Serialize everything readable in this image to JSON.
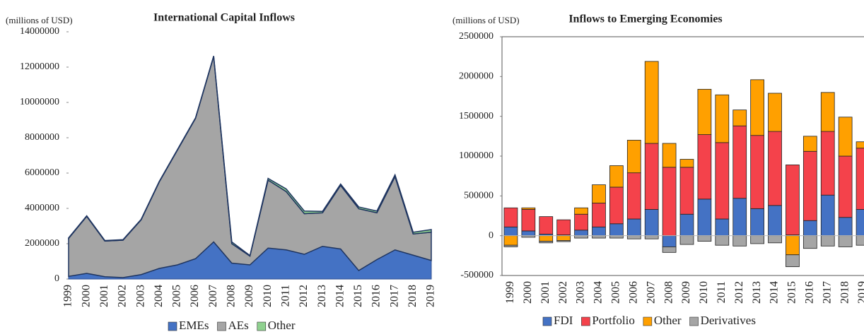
{
  "chart_data": [
    {
      "type": "area",
      "title": "International Capital Inflows",
      "ylabel": "(millions of USD)",
      "categories": [
        "1999",
        "2000",
        "2001",
        "2002",
        "2003",
        "2004",
        "2005",
        "2006",
        "2007",
        "2008",
        "2009",
        "2010",
        "2011",
        "2012",
        "2013",
        "2014",
        "2015",
        "2016",
        "2017",
        "2018",
        "2019"
      ],
      "series": [
        {
          "name": "EMEs",
          "color": "#4472c4",
          "values": [
            150000,
            320000,
            130000,
            80000,
            250000,
            600000,
            800000,
            1150000,
            2100000,
            900000,
            800000,
            1750000,
            1650000,
            1400000,
            1850000,
            1700000,
            480000,
            1100000,
            1650000,
            1350000,
            1050000
          ]
        },
        {
          "name": "AEs",
          "color": "#a5a5a5",
          "values": [
            2150000,
            3230000,
            2020000,
            2120000,
            3100000,
            4900000,
            6500000,
            7950000,
            10500000,
            1100000,
            500000,
            3850000,
            3300000,
            2300000,
            1900000,
            3600000,
            3500000,
            2650000,
            4150000,
            1200000,
            1600000
          ]
        },
        {
          "name": "Other",
          "color": "#8fd18f",
          "values": [
            30000,
            30000,
            30000,
            30000,
            30000,
            30000,
            30000,
            30000,
            30000,
            100000,
            30000,
            100000,
            150000,
            150000,
            80000,
            80000,
            100000,
            100000,
            100000,
            100000,
            150000
          ]
        }
      ],
      "ylim": [
        0,
        14000000
      ],
      "yticks": [
        0,
        2000000,
        4000000,
        6000000,
        8000000,
        10000000,
        12000000,
        14000000
      ]
    },
    {
      "type": "bar",
      "title": "Inflows to Emerging Economies",
      "ylabel": "(millions of USD)",
      "categories": [
        "1999",
        "2000",
        "2001",
        "2002",
        "2003",
        "2004",
        "2005",
        "2006",
        "2007",
        "2008",
        "2009",
        "2010",
        "2011",
        "2012",
        "2013",
        "2014",
        "2015",
        "2016",
        "2017",
        "2018",
        "2019"
      ],
      "series": [
        {
          "name": "FDI",
          "color": "#4472c4",
          "values": [
            110000,
            60000,
            20000,
            10000,
            70000,
            110000,
            150000,
            210000,
            330000,
            -140000,
            270000,
            460000,
            210000,
            470000,
            340000,
            380000,
            10000,
            190000,
            510000,
            230000,
            330000
          ]
        },
        {
          "name": "Portfolio",
          "color": "#f4424b",
          "values": [
            240000,
            270000,
            220000,
            190000,
            200000,
            300000,
            460000,
            580000,
            830000,
            860000,
            590000,
            810000,
            960000,
            910000,
            920000,
            930000,
            880000,
            870000,
            800000,
            770000,
            770000
          ]
        },
        {
          "name": "Other",
          "color": "#ffa000",
          "values": [
            -120000,
            20000,
            -70000,
            -60000,
            80000,
            230000,
            270000,
            410000,
            1030000,
            300000,
            100000,
            570000,
            600000,
            200000,
            700000,
            480000,
            -240000,
            190000,
            490000,
            490000,
            80000
          ]
        },
        {
          "name": "Derivatives",
          "color": "#a5a5a5",
          "values": [
            -20000,
            -20000,
            -20000,
            -15000,
            -30000,
            -30000,
            -30000,
            -40000,
            -40000,
            -70000,
            -110000,
            -70000,
            -120000,
            -130000,
            -100000,
            -90000,
            -150000,
            -160000,
            -130000,
            -140000,
            -120000
          ]
        }
      ],
      "ylim": [
        -500000,
        2500000
      ],
      "yticks": [
        -500000,
        0,
        500000,
        1000000,
        1500000,
        2000000,
        2500000
      ]
    }
  ]
}
